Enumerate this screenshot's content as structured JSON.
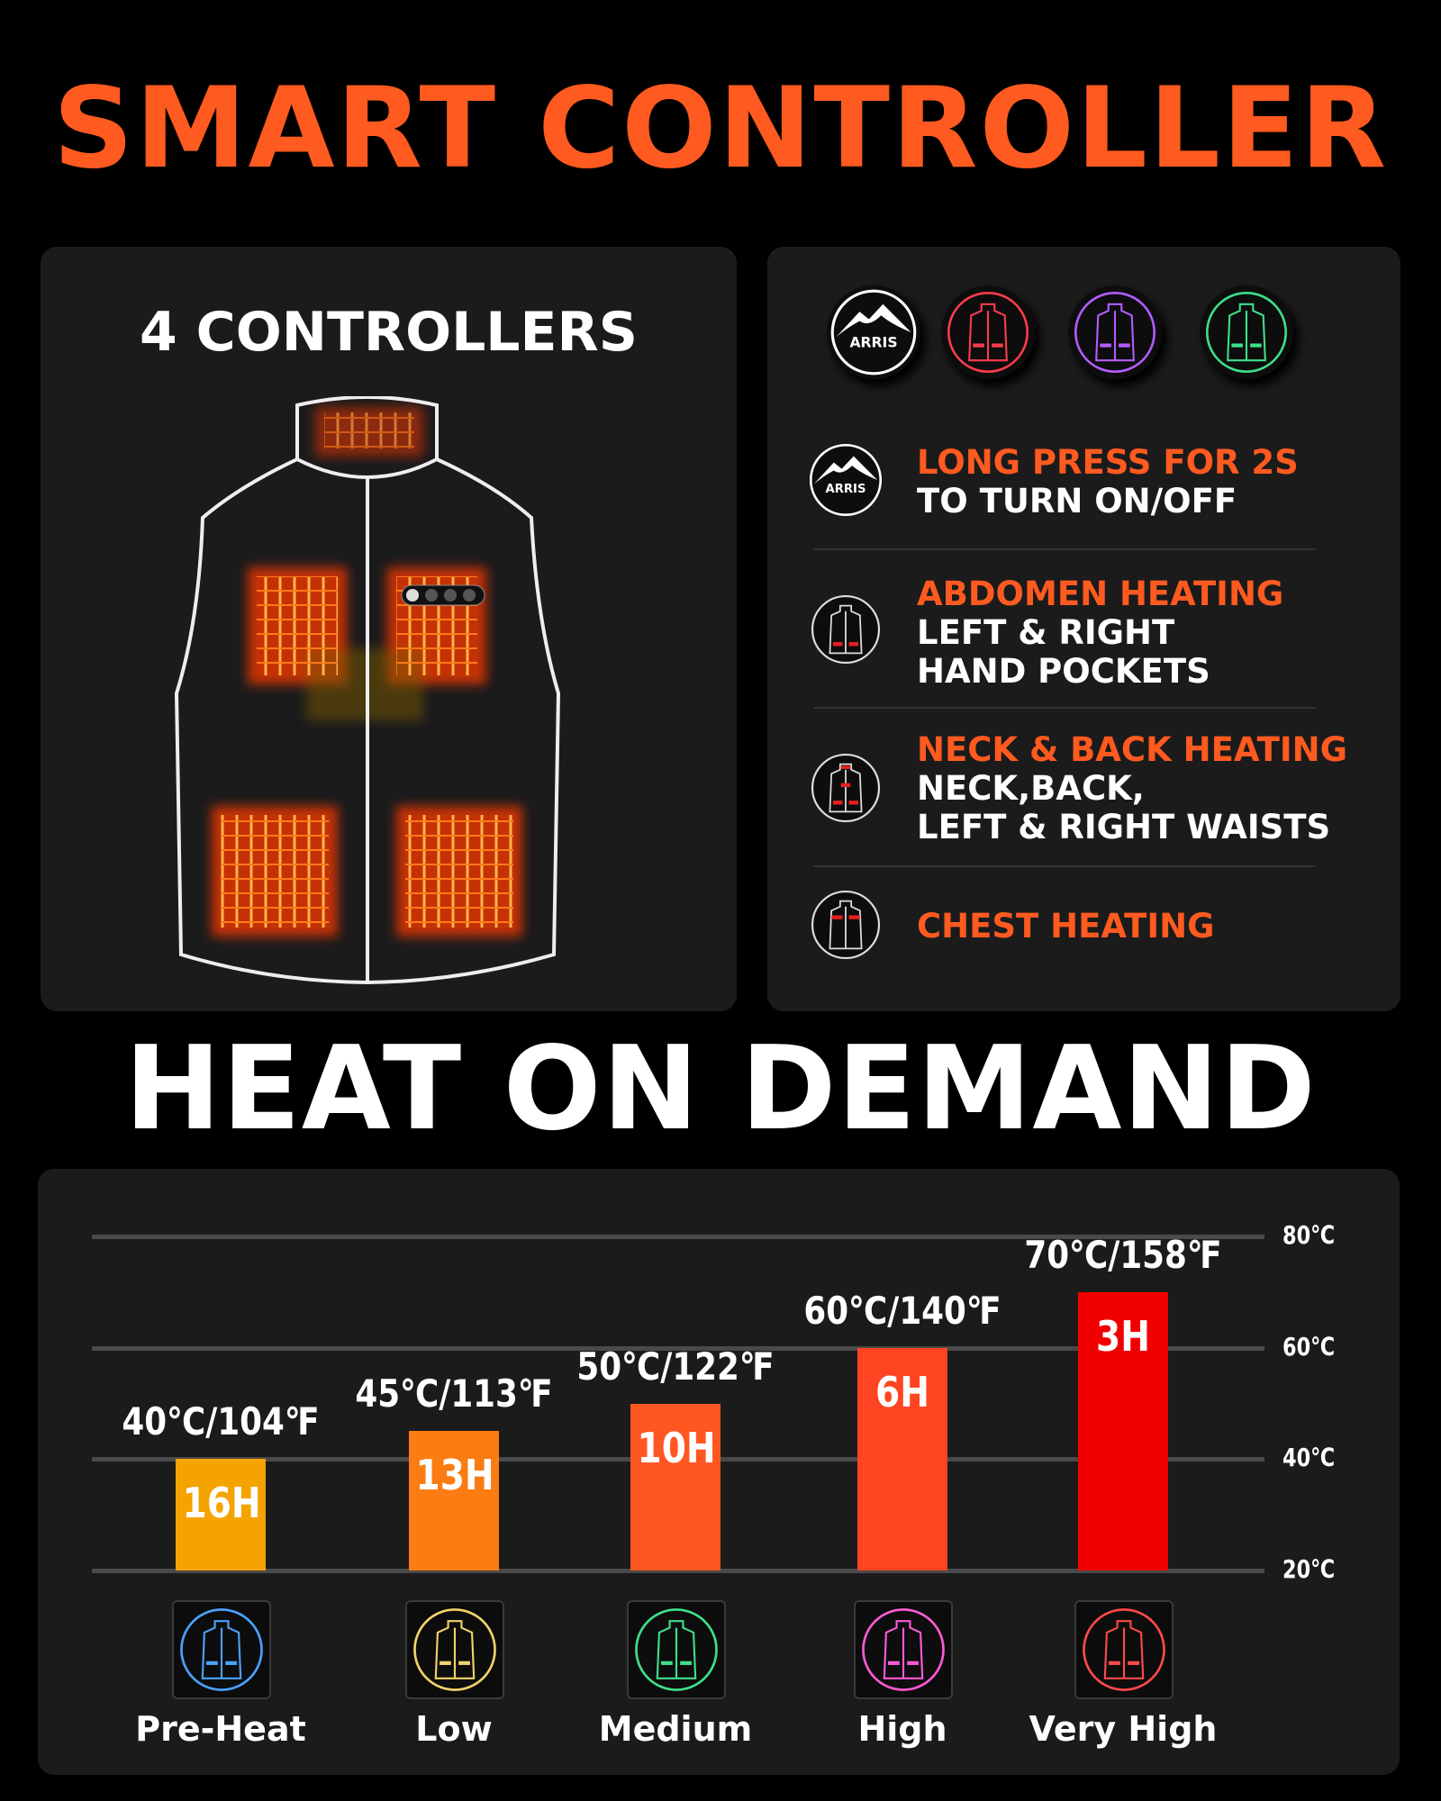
{
  "header": {
    "title": "SMART CONTROLLER"
  },
  "controllers_panel": {
    "title": "4 CONTROLLERS",
    "logo_text": "ARRIS"
  },
  "buttons_panel": {
    "buttons": [
      {
        "icon": "arris-logo-icon",
        "color": "#ffffff"
      },
      {
        "icon": "vest-icon",
        "color": "#ff3b4e"
      },
      {
        "icon": "vest-icon",
        "color": "#b45cff"
      },
      {
        "icon": "vest-icon",
        "color": "#3ee08a"
      }
    ],
    "rows": [
      {
        "icon": "arris-logo-icon",
        "title": "LONG PRESS FOR 2S",
        "lines": [
          "TO TURN ON/OFF"
        ]
      },
      {
        "icon": "vest-pockets-icon",
        "title": "ABDOMEN HEATING",
        "lines": [
          "LEFT & RIGHT",
          "HAND POCKETS"
        ]
      },
      {
        "icon": "vest-neck-back-icon",
        "title": "NECK & BACK HEATING",
        "lines": [
          "NECK,BACK,",
          "LEFT & RIGHT WAISTS"
        ]
      },
      {
        "icon": "vest-chest-icon",
        "title": "CHEST HEATING",
        "lines": []
      }
    ]
  },
  "section2": {
    "title": "HEAT ON DEMAND"
  },
  "chart_data": {
    "type": "bar",
    "categories": [
      "Pre-Heat",
      "Low",
      "Medium",
      "High",
      "Very High"
    ],
    "values": [
      40,
      45,
      50,
      60,
      70
    ],
    "value_labels": [
      "40℃/104℉",
      "45℃/113℉",
      "50℃/122℉",
      "60℃/140℉",
      "70℃/158℉"
    ],
    "bar_labels": [
      "16H",
      "13H",
      "10H",
      "6H",
      "3H"
    ],
    "bar_colors": [
      "#f5a300",
      "#fb7c12",
      "#ff5722",
      "#ff4422",
      "#f00000"
    ],
    "icon_colors": [
      "#4aa3ff",
      "#f2d36b",
      "#3ee08a",
      "#ff5ad6",
      "#ff4a4a"
    ],
    "yticks": [
      "20℃",
      "40℃",
      "60℃",
      "80℃"
    ],
    "ylim": [
      20,
      80
    ],
    "grid": true
  },
  "colors": {
    "accent": "#ff5a1f",
    "panel": "#1b1b1c",
    "background": "#000000"
  }
}
